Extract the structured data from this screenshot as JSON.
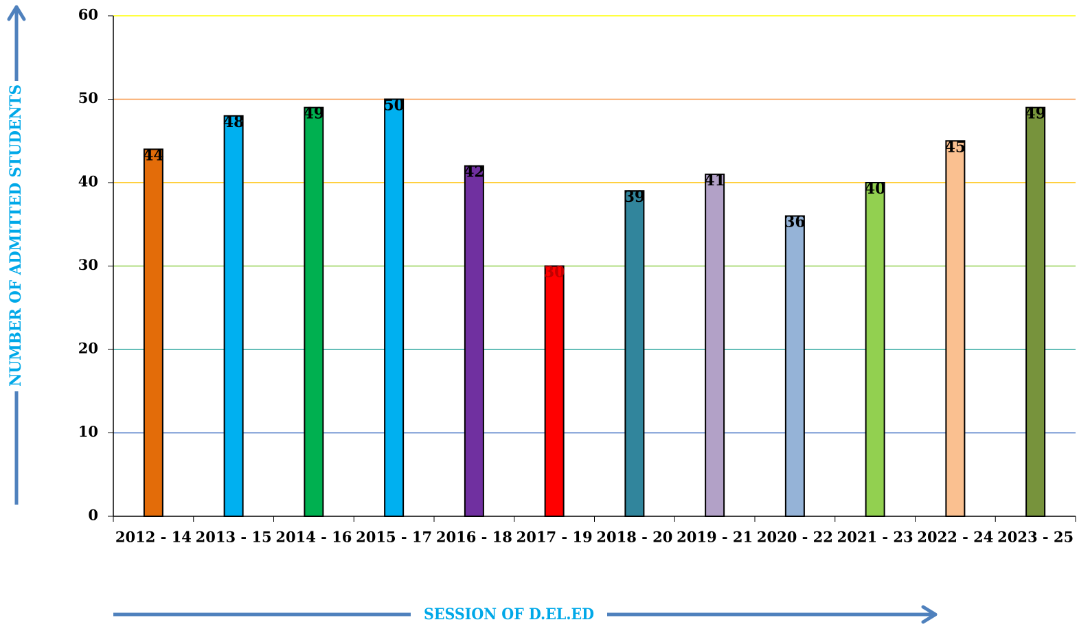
{
  "chart_data": {
    "type": "bar",
    "categories": [
      "2012 - 14",
      "2013 - 15",
      "2014 - 16",
      "2015 - 17",
      "2016 - 18",
      "2017 - 19",
      "2018 - 20",
      "2019 - 21",
      "2020 - 22",
      "2021 - 23",
      "2022 - 24",
      "2023 - 25"
    ],
    "values": [
      44,
      48,
      49,
      50,
      42,
      30,
      39,
      41,
      36,
      40,
      45,
      49
    ],
    "bar_colors": [
      "#e36c09",
      "#00b0f0",
      "#00b050",
      "#00b0f0",
      "#7030a0",
      "#ff0000",
      "#31859c",
      "#b2a1c7",
      "#95b3d7",
      "#92d050",
      "#fac090",
      "#77933c"
    ],
    "data_labels": [
      "44",
      "48",
      "49",
      "50",
      "42",
      "30",
      "39",
      "41",
      "36",
      "40",
      "45",
      "49"
    ],
    "xlabel": "SESSION OF D.EL.ED",
    "ylabel": "NUMBER OF ADMITTED STUDENTS",
    "ylim": [
      0,
      60
    ],
    "yticks": [
      "0",
      "10",
      "20",
      "30",
      "40",
      "50",
      "60"
    ],
    "gridline_colors": [
      "#000000",
      "#4472c4",
      "#31a9a0",
      "#92d050",
      "#ffc000",
      "#f79646",
      "#ffff00"
    ],
    "axis_title_color": "#00a8e8",
    "arrow_color": "#4f81bd",
    "grid": true,
    "legend": "none"
  }
}
